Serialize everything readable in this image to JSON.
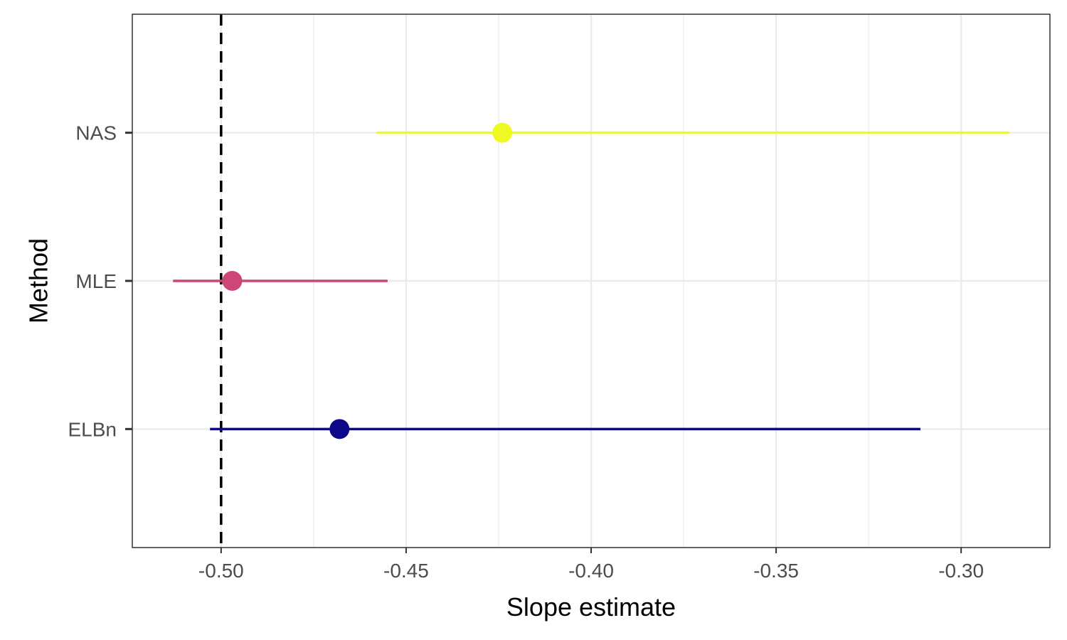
{
  "chart_data": {
    "type": "forest",
    "xlabel": "Slope estimate",
    "ylabel": "Method",
    "xlim": [
      -0.524,
      -0.276
    ],
    "x_ticks": [
      {
        "value": -0.5,
        "label": "-0.50"
      },
      {
        "value": -0.45,
        "label": "-0.45"
      },
      {
        "value": -0.4,
        "label": "-0.40"
      },
      {
        "value": -0.35,
        "label": "-0.35"
      },
      {
        "value": -0.3,
        "label": "-0.30"
      }
    ],
    "x_minor_ticks": [
      -0.475,
      -0.425,
      -0.375,
      -0.325
    ],
    "reference_line": {
      "value": -0.5,
      "style": "dashed"
    },
    "categories": [
      "ELBn",
      "MLE",
      "NAS"
    ],
    "series": [
      {
        "category": "NAS",
        "estimate": -0.424,
        "lower": -0.458,
        "upper": -0.287,
        "color": "#f0f921"
      },
      {
        "category": "MLE",
        "estimate": -0.497,
        "lower": -0.513,
        "upper": -0.455,
        "color": "#cc4778"
      },
      {
        "category": "ELBn",
        "estimate": -0.468,
        "lower": -0.503,
        "upper": -0.311,
        "color": "#0d0887"
      }
    ],
    "grid": true,
    "panel_border": true
  }
}
